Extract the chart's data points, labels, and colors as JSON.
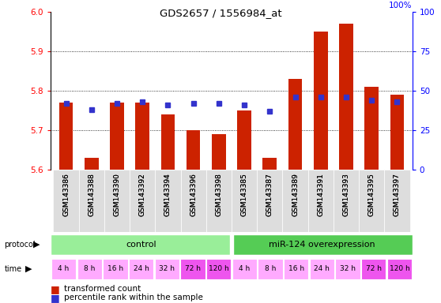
{
  "title": "GDS2657 / 1556984_at",
  "samples": [
    "GSM143386",
    "GSM143388",
    "GSM143390",
    "GSM143392",
    "GSM143394",
    "GSM143396",
    "GSM143398",
    "GSM143385",
    "GSM143387",
    "GSM143389",
    "GSM143391",
    "GSM143393",
    "GSM143395",
    "GSM143397"
  ],
  "transformed_counts": [
    5.77,
    5.63,
    5.77,
    5.77,
    5.74,
    5.7,
    5.69,
    5.75,
    5.63,
    5.83,
    5.95,
    5.97,
    5.81,
    5.79
  ],
  "percentile_ranks": [
    42,
    38,
    42,
    43,
    41,
    42,
    42,
    41,
    37,
    46,
    46,
    46,
    44,
    43
  ],
  "ylim_left": [
    5.6,
    6.0
  ],
  "ylim_right": [
    0,
    100
  ],
  "yticks_left": [
    5.6,
    5.7,
    5.8,
    5.9,
    6.0
  ],
  "yticks_right": [
    0,
    25,
    50,
    75,
    100
  ],
  "bar_color": "#cc2200",
  "dot_color": "#3333cc",
  "control_color": "#99ee99",
  "mir_color": "#55cc55",
  "time_colors_light": "#ffaaff",
  "time_colors_dark": "#ee55ee",
  "time_dark_indices": [
    5,
    6,
    12,
    13
  ],
  "time_labels": [
    "4 h",
    "8 h",
    "16 h",
    "24 h",
    "32 h",
    "72 h",
    "120 h",
    "4 h",
    "8 h",
    "16 h",
    "24 h",
    "32 h",
    "72 h",
    "120 h"
  ],
  "protocol_labels": [
    "control",
    "miR-124 overexpression"
  ],
  "n_control": 7,
  "n_mir": 7,
  "legend_items": [
    "transformed count",
    "percentile rank within the sample"
  ],
  "base_value": 5.6
}
